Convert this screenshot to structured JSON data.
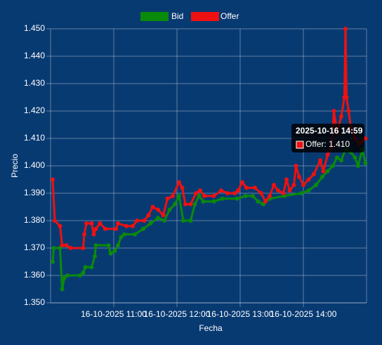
{
  "chart_data": {
    "type": "line",
    "x_label": "Fecha",
    "y_label": "Precio",
    "legend": "top",
    "grid": true,
    "xlim": [
      "16-10-2025 10:00",
      "16-10-2025 15:00"
    ],
    "xticks": [
      "16-10-2025 11:00",
      "16-10-2025 12:00",
      "16-10-2025 13:00",
      "16-10-2025 14:00"
    ],
    "ylim": [
      1.35,
      1.45
    ],
    "yticks": [
      {
        "value": 1.35,
        "label": "1.350"
      },
      {
        "value": 1.36,
        "label": "1.360"
      },
      {
        "value": 1.37,
        "label": "1.370"
      },
      {
        "value": 1.38,
        "label": "1.380"
      },
      {
        "value": 1.39,
        "label": "1.390"
      },
      {
        "value": 1.4,
        "label": "1.400"
      },
      {
        "value": 1.41,
        "label": "1.410"
      },
      {
        "value": 1.42,
        "label": "1.420"
      },
      {
        "value": 1.43,
        "label": "1.430"
      },
      {
        "value": 1.44,
        "label": "1.440"
      },
      {
        "value": 1.45,
        "label": "1.450"
      }
    ],
    "series": [
      {
        "name": "Bid",
        "color": "#0a8a0a",
        "x": [
          "16-10-2025 10:02",
          "16-10-2025 10:03",
          "16-10-2025 10:09",
          "16-10-2025 10:11",
          "16-10-2025 10:13",
          "16-10-2025 10:16",
          "16-10-2025 10:28",
          "16-10-2025 10:31",
          "16-10-2025 10:33",
          "16-10-2025 10:39",
          "16-10-2025 10:42",
          "16-10-2025 10:43",
          "16-10-2025 10:55",
          "16-10-2025 10:57",
          "16-10-2025 11:01",
          "16-10-2025 11:04",
          "16-10-2025 11:07",
          "16-10-2025 11:10",
          "16-10-2025 11:20",
          "16-10-2025 11:28",
          "16-10-2025 11:35",
          "16-10-2025 11:42",
          "16-10-2025 11:48",
          "16-10-2025 11:53",
          "16-10-2025 11:58",
          "16-10-2025 12:02",
          "16-10-2025 12:06",
          "16-10-2025 12:13",
          "16-10-2025 12:17",
          "16-10-2025 12:21",
          "16-10-2025 12:25",
          "16-10-2025 12:35",
          "16-10-2025 12:43",
          "16-10-2025 12:57",
          "16-10-2025 13:05",
          "16-10-2025 13:12",
          "16-10-2025 13:17",
          "16-10-2025 13:22",
          "16-10-2025 13:28",
          "16-10-2025 13:42",
          "16-10-2025 13:58",
          "16-10-2025 14:05",
          "16-10-2025 14:12",
          "16-10-2025 14:18",
          "16-10-2025 14:23",
          "16-10-2025 14:28",
          "16-10-2025 14:32",
          "16-10-2025 14:36",
          "16-10-2025 14:40",
          "16-10-2025 14:45",
          "16-10-2025 14:49",
          "16-10-2025 14:52",
          "16-10-2025 14:56",
          "16-10-2025 14:59"
        ],
        "values": [
          1.365,
          1.37,
          1.37,
          1.355,
          1.359,
          1.36,
          1.36,
          1.361,
          1.363,
          1.363,
          1.367,
          1.371,
          1.371,
          1.368,
          1.369,
          1.371,
          1.374,
          1.375,
          1.375,
          1.377,
          1.379,
          1.381,
          1.38,
          1.384,
          1.386,
          1.389,
          1.38,
          1.38,
          1.386,
          1.389,
          1.387,
          1.387,
          1.388,
          1.388,
          1.389,
          1.389,
          1.387,
          1.386,
          1.388,
          1.389,
          1.39,
          1.391,
          1.393,
          1.396,
          1.398,
          1.4,
          1.403,
          1.402,
          1.406,
          1.405,
          1.403,
          1.4,
          1.406,
          1.401
        ]
      },
      {
        "name": "Offer",
        "color": "#ee1111",
        "x": [
          "16-10-2025 10:02",
          "16-10-2025 10:04",
          "16-10-2025 10:09",
          "16-10-2025 10:11",
          "16-10-2025 10:15",
          "16-10-2025 10:19",
          "16-10-2025 10:31",
          "16-10-2025 10:32",
          "16-10-2025 10:34",
          "16-10-2025 10:39",
          "16-10-2025 10:41",
          "16-10-2025 10:43",
          "16-10-2025 10:47",
          "16-10-2025 10:52",
          "16-10-2025 11:02",
          "16-10-2025 11:04",
          "16-10-2025 11:12",
          "16-10-2025 11:18",
          "16-10-2025 11:22",
          "16-10-2025 11:29",
          "16-10-2025 11:33",
          "16-10-2025 11:37",
          "16-10-2025 11:42",
          "16-10-2025 11:47",
          "16-10-2025 11:51",
          "16-10-2025 11:56",
          "16-10-2025 12:02",
          "16-10-2025 12:05",
          "16-10-2025 12:08",
          "16-10-2025 12:13",
          "16-10-2025 12:18",
          "16-10-2025 12:22",
          "16-10-2025 12:26",
          "16-10-2025 12:35",
          "16-10-2025 12:42",
          "16-10-2025 12:48",
          "16-10-2025 12:55",
          "16-10-2025 12:58",
          "16-10-2025 13:02",
          "16-10-2025 13:06",
          "16-10-2025 13:14",
          "16-10-2025 13:20",
          "16-10-2025 13:24",
          "16-10-2025 13:28",
          "16-10-2025 13:32",
          "16-10-2025 13:36",
          "16-10-2025 13:41",
          "16-10-2025 13:44",
          "16-10-2025 13:47",
          "16-10-2025 13:51",
          "16-10-2025 13:53",
          "16-10-2025 13:56",
          "16-10-2025 14:00",
          "16-10-2025 14:05",
          "16-10-2025 14:10",
          "16-10-2025 14:16",
          "16-10-2025 14:19",
          "16-10-2025 14:23",
          "16-10-2025 14:27",
          "16-10-2025 14:29",
          "16-10-2025 14:32",
          "16-10-2025 14:36",
          "16-10-2025 14:39",
          "16-10-2025 14:40",
          "16-10-2025 14:41",
          "16-10-2025 14:43",
          "16-10-2025 14:45",
          "16-10-2025 14:49",
          "16-10-2025 14:53",
          "16-10-2025 14:56",
          "16-10-2025 14:59"
        ],
        "values": [
          1.395,
          1.38,
          1.378,
          1.371,
          1.371,
          1.37,
          1.37,
          1.375,
          1.379,
          1.379,
          1.375,
          1.377,
          1.379,
          1.377,
          1.377,
          1.379,
          1.378,
          1.378,
          1.38,
          1.38,
          1.382,
          1.385,
          1.384,
          1.382,
          1.388,
          1.389,
          1.394,
          1.392,
          1.386,
          1.386,
          1.39,
          1.391,
          1.389,
          1.389,
          1.391,
          1.39,
          1.39,
          1.391,
          1.394,
          1.392,
          1.392,
          1.39,
          1.387,
          1.389,
          1.393,
          1.391,
          1.39,
          1.395,
          1.391,
          1.393,
          1.4,
          1.396,
          1.393,
          1.395,
          1.397,
          1.402,
          1.398,
          1.404,
          1.407,
          1.42,
          1.412,
          1.418,
          1.425,
          1.45,
          1.425,
          1.42,
          1.414,
          1.41,
          1.408,
          1.409,
          1.41
        ]
      }
    ],
    "tooltip": {
      "title": "2025-10-16 14:59",
      "label": "Offer: 1.410"
    }
  }
}
